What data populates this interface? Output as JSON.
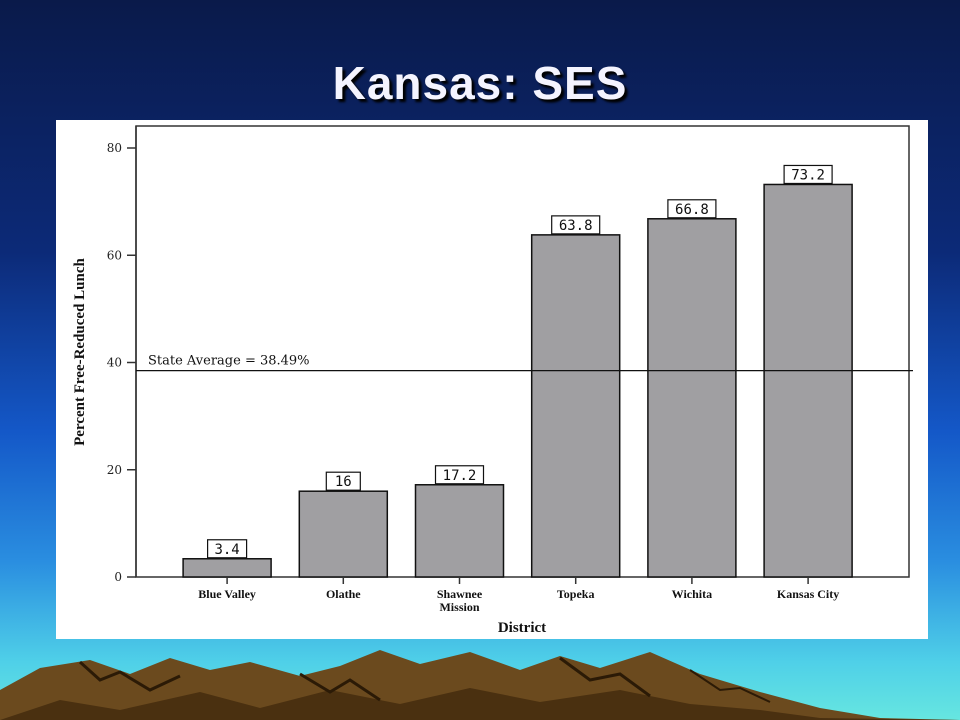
{
  "slide": {
    "title": "Kansas:  SES"
  },
  "chart_data": {
    "type": "bar",
    "categories": [
      "Blue Valley",
      "Olathe",
      "Shawnee Mission",
      "Topeka",
      "Wichita",
      "Kansas City"
    ],
    "category_lines": [
      [
        "Blue Valley"
      ],
      [
        "Olathe"
      ],
      [
        "Shawnee",
        "Mission"
      ],
      [
        "Topeka"
      ],
      [
        "Wichita"
      ],
      [
        "Kansas City"
      ]
    ],
    "values": [
      3.4,
      16,
      17.2,
      63.8,
      66.8,
      73.2
    ],
    "data_labels": [
      "3.4",
      "16",
      "17.2",
      "63.8",
      "66.8",
      "73.2"
    ],
    "xlabel": "District",
    "ylabel": "Percent Free-Reduced Lunch",
    "ylim": [
      0,
      80
    ],
    "yticks": [
      0,
      20,
      40,
      60,
      80
    ],
    "reference_line": {
      "value": 38.49,
      "label": "State Average = 38.49%"
    },
    "bar_color": "#a09fa2",
    "grid": false
  }
}
